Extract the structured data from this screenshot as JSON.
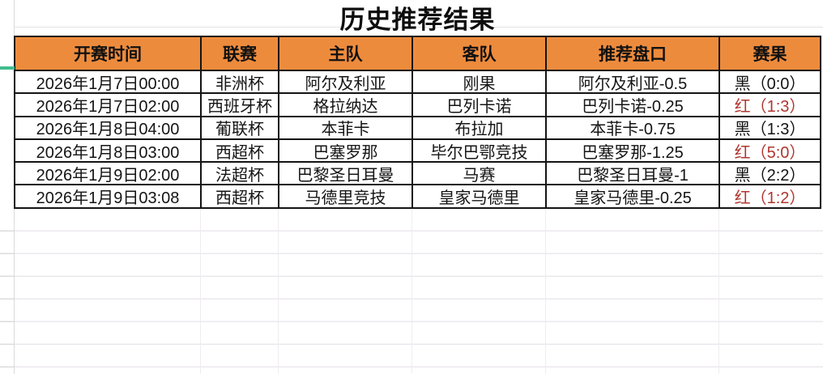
{
  "title": "历史推荐结果",
  "colors": {
    "header_bg": "#ED8B3D",
    "result_red": "#B03730",
    "accent_green": "#41BD8F"
  },
  "table": {
    "headers": [
      "开赛时间",
      "联赛",
      "主队",
      "客队",
      "推荐盘口",
      "赛果"
    ],
    "rows": [
      {
        "time": "2026年1月7日00:00",
        "league": "非洲杯",
        "home": "阿尔及利亚",
        "away": "刚果",
        "handicap": "阿尔及利亚-0.5",
        "result": "黑（0:0）",
        "result_type": "black"
      },
      {
        "time": "2026年1月7日02:00",
        "league": "西班牙杯",
        "home": "格拉纳达",
        "away": "巴列卡诺",
        "handicap": "巴列卡诺-0.25",
        "result": "红（1:3）",
        "result_type": "red"
      },
      {
        "time": "2026年1月8日04:00",
        "league": "葡联杯",
        "home": "本菲卡",
        "away": "布拉加",
        "handicap": "本菲卡-0.75",
        "result": "黑（1:3）",
        "result_type": "black"
      },
      {
        "time": "2026年1月8日03:00",
        "league": "西超杯",
        "home": "巴塞罗那",
        "away": "毕尔巴鄂竞技",
        "handicap": "巴塞罗那-1.25",
        "result": "红（5:0）",
        "result_type": "red"
      },
      {
        "time": "2026年1月9日02:00",
        "league": "法超杯",
        "home": "巴黎圣日耳曼",
        "away": "马赛",
        "handicap": "巴黎圣日耳曼-1",
        "result": "黑（2:2）",
        "result_type": "black"
      },
      {
        "time": "2026年1月9日03:08",
        "league": "西超杯",
        "home": "马德里竞技",
        "away": "皇家马德里",
        "handicap": "皇家马德里-0.25",
        "result": "红（1:2）",
        "result_type": "red"
      }
    ]
  }
}
